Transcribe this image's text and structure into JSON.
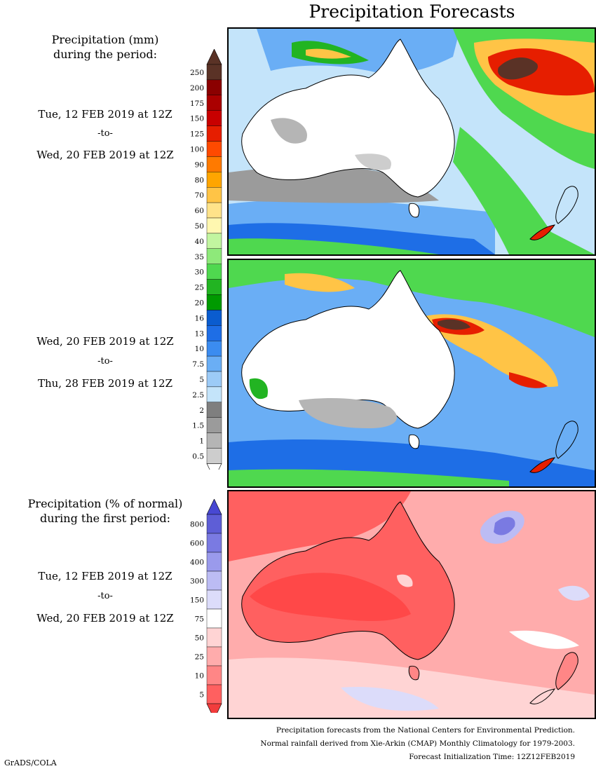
{
  "title": "Precipitation Forecasts",
  "period_label": {
    "line1": "Precipitation (mm)",
    "line2": "during the period:"
  },
  "period1": {
    "start": "Tue, 12 FEB 2019 at 12Z",
    "sep": "-to-",
    "end": "Wed, 20 FEB 2019 at 12Z"
  },
  "period2": {
    "start": "Wed, 20 FEB 2019 at 12Z",
    "sep": "-to-",
    "end": "Thu, 28 FEB 2019 at 12Z"
  },
  "percent_label": {
    "line1": "Precipitation (% of normal)",
    "line2": "during the first period:"
  },
  "period3": {
    "start": "Tue, 12 FEB 2019 at 12Z",
    "sep": "-to-",
    "end": "Wed, 20 FEB 2019 at 12Z"
  },
  "precip_scale": {
    "labels": [
      "250",
      "200",
      "175",
      "150",
      "125",
      "100",
      "90",
      "80",
      "70",
      "60",
      "50",
      "40",
      "35",
      "30",
      "25",
      "20",
      "16",
      "13",
      "10",
      "7.5",
      "5",
      "2.5",
      "2",
      "1.5",
      "1",
      "0.5"
    ],
    "colors": [
      "#5a3226",
      "#8b0000",
      "#aa0000",
      "#c80000",
      "#e61e00",
      "#ff4a00",
      "#ff7a00",
      "#ffa500",
      "#ffc446",
      "#ffe38a",
      "#fff7b0",
      "#c2f5a0",
      "#8ee97a",
      "#4fd84f",
      "#22b422",
      "#009a00",
      "#0a5ccf",
      "#1e6ee6",
      "#3b8cf0",
      "#6aaef5",
      "#9ccbf7",
      "#c4e4fa",
      "#7f7f7f",
      "#9b9b9b",
      "#b5b5b5",
      "#cdcdcd"
    ],
    "top_cap": "#5a3226",
    "bottom_cap": "#ffffff"
  },
  "percent_scale": {
    "labels": [
      "800",
      "600",
      "400",
      "300",
      "150",
      "75",
      "50",
      "25",
      "10",
      "5"
    ],
    "colors": [
      "#5e5ed6",
      "#7a7ae2",
      "#9a9aec",
      "#bcbcf4",
      "#dcdcfa",
      "#ffffff",
      "#ffd4d4",
      "#ffacac",
      "#ff8686",
      "#ff6060"
    ],
    "top_cap": "#4848d2",
    "bottom_cap": "#f23c3c"
  },
  "footer": {
    "line1": "Precipitation forecasts from the National Centers for Environmental Prediction.",
    "line2": "Normal rainfall derived from Xie-Arkin (CMAP) Monthly Climatology for 1979-2003.",
    "line3": "Forecast Initialization Time: 12Z12FEB2019"
  },
  "credit": "GrADS/COLA"
}
